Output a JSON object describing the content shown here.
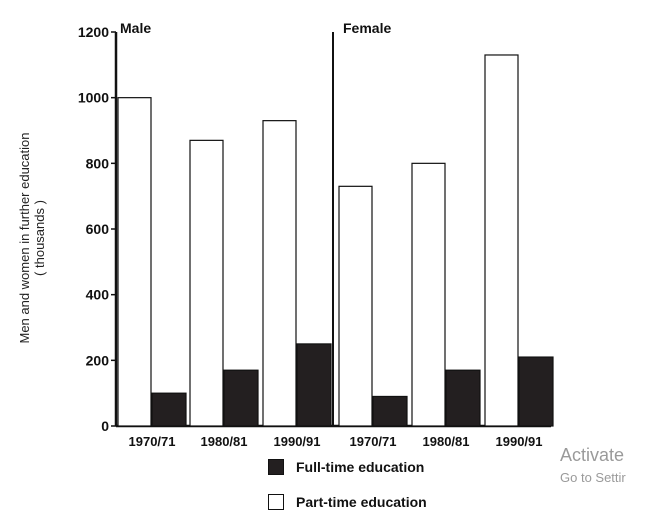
{
  "chart_data": {
    "type": "bar",
    "ylabel_line1": "Men and women in further education",
    "ylabel_line2": "( thousands )",
    "ylim": [
      0,
      1200
    ],
    "yticks": [
      0,
      200,
      400,
      600,
      800,
      1000,
      1200
    ],
    "grid": false,
    "legend_placement": "bottom",
    "panels": [
      {
        "title": "Male",
        "categories": [
          "1970/71",
          "1980/81",
          "1990/91"
        ],
        "series": [
          {
            "name": "Part-time education",
            "values": [
              1000,
              870,
              930
            ],
            "fill": "#ffffff"
          },
          {
            "name": "Full-time education",
            "values": [
              100,
              170,
              250
            ],
            "fill": "#231f20"
          }
        ]
      },
      {
        "title": "Female",
        "categories": [
          "1970/71",
          "1980/81",
          "1990/91"
        ],
        "series": [
          {
            "name": "Part-time education",
            "values": [
              730,
              800,
              1130
            ],
            "fill": "#ffffff"
          },
          {
            "name": "Full-time education",
            "values": [
              90,
              170,
              210
            ],
            "fill": "#231f20"
          }
        ]
      }
    ]
  },
  "legend": {
    "full_time_label": "Full-time education",
    "part_time_label": "Part-time education",
    "full_time_color": "#231f20",
    "part_time_color": "#ffffff"
  },
  "watermark": {
    "line1": "Activate",
    "line2": "Go to Settir"
  }
}
